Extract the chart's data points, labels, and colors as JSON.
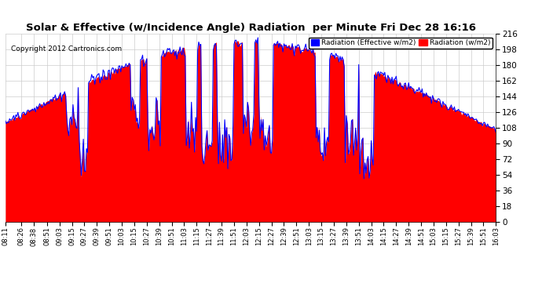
{
  "title": "Solar & Effective (w/Incidence Angle) Radiation  per Minute Fri Dec 28 16:16",
  "copyright": "Copyright 2012 Cartronics.com",
  "legend_labels": [
    "Radiation (Effective w/m2)",
    "Radiation (w/m2)"
  ],
  "legend_colors": [
    "#0000ff",
    "#ff0000"
  ],
  "ylim": [
    0,
    216
  ],
  "yticks": [
    0,
    18,
    36,
    54,
    72,
    90,
    108,
    126,
    144,
    162,
    180,
    198,
    216
  ],
  "background_color": "#ffffff",
  "plot_bg_color": "#ffffff",
  "time_labels": [
    "08:11",
    "08:26",
    "08:38",
    "08:51",
    "09:03",
    "09:15",
    "09:27",
    "09:39",
    "09:51",
    "10:03",
    "10:15",
    "10:27",
    "10:39",
    "10:51",
    "11:03",
    "11:15",
    "11:27",
    "11:39",
    "11:51",
    "12:03",
    "12:15",
    "12:27",
    "12:39",
    "12:51",
    "13:03",
    "13:15",
    "13:27",
    "13:39",
    "13:51",
    "14:03",
    "14:15",
    "14:27",
    "14:39",
    "14:51",
    "15:03",
    "15:15",
    "15:27",
    "15:39",
    "15:51",
    "16:03"
  ]
}
